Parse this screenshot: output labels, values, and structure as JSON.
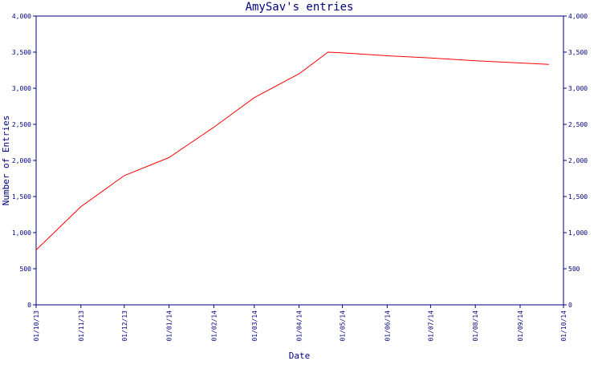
{
  "chart_data": {
    "type": "line",
    "title": "AmySav's entries",
    "xlabel": "Date",
    "ylabel": "Number of Entries",
    "x_tick_labels": [
      "01/10/13",
      "01/11/13",
      "01/12/13",
      "01/01/14",
      "01/02/14",
      "01/03/14",
      "01/04/14",
      "01/05/14",
      "01/06/14",
      "01/07/14",
      "01/08/14",
      "01/09/14",
      "01/10/14"
    ],
    "y_tick_labels": [
      "0",
      "500",
      "1,000",
      "1,500",
      "2,000",
      "2,500",
      "3,000",
      "3,500",
      "4,000"
    ],
    "y_ticks": [
      0,
      500,
      1000,
      1500,
      2000,
      2500,
      3000,
      3500,
      4000
    ],
    "ylim": [
      0,
      4000
    ],
    "grid": false,
    "axes": [
      "left",
      "right"
    ],
    "colors": {
      "line": "#ff0000",
      "axis": "#000080",
      "text": "#000080",
      "background": "#ffffff"
    },
    "series": [
      {
        "x": [
          "01/10/13",
          "01/11/13",
          "01/12/13",
          "01/01/14",
          "01/02/14",
          "01/03/14",
          "01/04/14",
          "21/04/14",
          "01/05/14",
          "01/06/14",
          "01/07/14",
          "01/08/14",
          "01/09/14",
          "21/09/14"
        ],
        "values": [
          760,
          1360,
          1790,
          2040,
          2460,
          2870,
          3200,
          3500,
          3490,
          3450,
          3420,
          3380,
          3350,
          3330
        ]
      }
    ]
  }
}
